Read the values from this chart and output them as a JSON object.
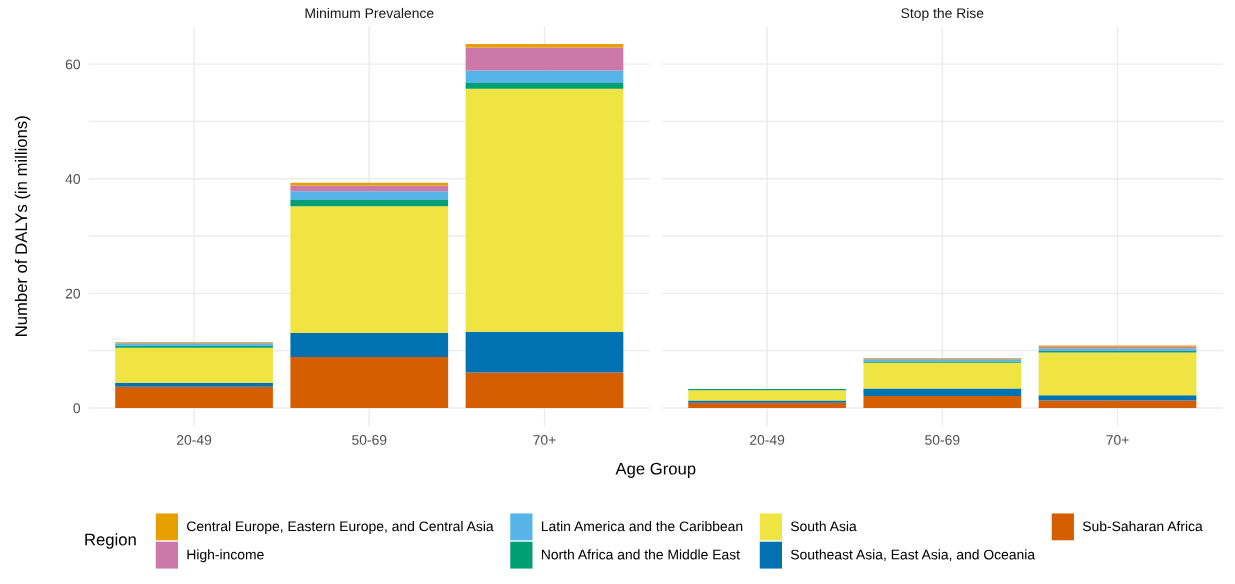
{
  "chart_data": [
    {
      "type": "bar",
      "title": "Minimum Prevalence",
      "xlabel": "Age Group",
      "ylabel": "Number of DALYs (in millions)",
      "legend_title": "Region",
      "legend": "bottom",
      "stacked": true,
      "grid": true,
      "categories": [
        "20-49",
        "50-69",
        "70+"
      ],
      "ylim": [
        -3.2,
        66.6
      ],
      "yticks": [
        0,
        {
          "value": 10,
          "label": null
        },
        20,
        {
          "value": 30,
          "label": null
        },
        40,
        {
          "value": 50,
          "label": null
        },
        60
      ],
      "series": [
        {
          "name": "Sub-Saharan Africa",
          "color": "#d55e00",
          "values": [
            3.7,
            8.9,
            6.2
          ]
        },
        {
          "name": "Southeast Asia, East Asia, and Oceania",
          "color": "#0072b2",
          "values": [
            0.7,
            4.2,
            7.1
          ]
        },
        {
          "name": "South Asia",
          "color": "#f0e442",
          "values": [
            6.1,
            22.1,
            42.4
          ]
        },
        {
          "name": "North Africa and the Middle East",
          "color": "#009e73",
          "values": [
            0.4,
            1.1,
            1.0
          ]
        },
        {
          "name": "Latin America and the Caribbean",
          "color": "#56b4e9",
          "values": [
            0.4,
            1.5,
            2.2
          ]
        },
        {
          "name": "High-income",
          "color": "#cc79a7",
          "values": [
            0.1,
            1.0,
            4.0
          ]
        },
        {
          "name": "Central Europe, Eastern Europe, and Central Asia",
          "color": "#e69f00",
          "values": [
            0.1,
            0.5,
            0.6
          ]
        }
      ]
    },
    {
      "type": "bar",
      "title": "Stop the Rise",
      "stacked": true,
      "grid": true,
      "tick_labels": "x",
      "categories": [
        "20-49",
        "50-69",
        "70+"
      ],
      "ylim": [
        -3.2,
        66.6
      ],
      "yticks": [
        0,
        {
          "value": 10,
          "label": null
        },
        20,
        {
          "value": 30,
          "label": null
        },
        40,
        {
          "value": 50,
          "label": null
        },
        60
      ],
      "series": [
        {
          "color": "#d55e00",
          "values": [
            0.9,
            2.1,
            1.3
          ]
        },
        {
          "color": "#0072b2",
          "values": [
            0.4,
            1.3,
            0.9
          ]
        },
        {
          "color": "#f0e442",
          "values": [
            1.8,
            4.5,
            7.5
          ]
        },
        {
          "color": "#009e73",
          "values": [
            0.2,
            0.2,
            0.3
          ]
        },
        {
          "color": "#56b4e9",
          "values": [
            null,
            0.4,
            0.4
          ]
        },
        {
          "color": "#cc79a7",
          "values": [
            null,
            0.1,
            0.3
          ]
        },
        {
          "color": "#e69f00",
          "values": [
            null,
            0.1,
            0.2
          ]
        }
      ]
    }
  ]
}
